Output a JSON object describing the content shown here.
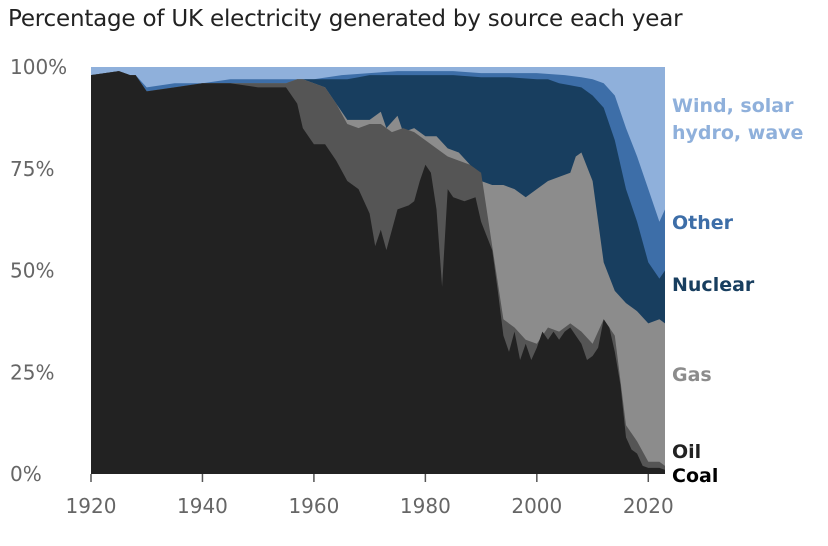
{
  "chart_data": {
    "type": "area",
    "stacked": true,
    "title": "Percentage of UK electricity generated by source each year",
    "xlabel": "",
    "ylabel": "",
    "xlim": [
      1920,
      2023
    ],
    "ylim": [
      0,
      100
    ],
    "x_ticks": [
      1920,
      1940,
      1960,
      1980,
      2000,
      2020
    ],
    "y_ticks": [
      0,
      25,
      50,
      75,
      100
    ],
    "y_tick_labels": [
      "0%",
      "25%",
      "50%",
      "75%",
      "100%"
    ],
    "legend_placement": "right",
    "grid": false,
    "series_order_bottom_to_top": [
      "Coal",
      "Oil",
      "Gas",
      "Nuclear",
      "Other",
      "Wind, solar hydro, wave"
    ],
    "series": [
      {
        "name": "Coal",
        "color": "#222222",
        "points": [
          [
            1920,
            98
          ],
          [
            1925,
            99
          ],
          [
            1927,
            98
          ],
          [
            1928,
            98
          ],
          [
            1930,
            94
          ],
          [
            1935,
            95
          ],
          [
            1940,
            96
          ],
          [
            1945,
            96
          ],
          [
            1950,
            95
          ],
          [
            1955,
            95
          ],
          [
            1957,
            91
          ],
          [
            1958,
            85
          ],
          [
            1960,
            81
          ],
          [
            1962,
            81
          ],
          [
            1964,
            77
          ],
          [
            1966,
            72
          ],
          [
            1968,
            70
          ],
          [
            1970,
            64
          ],
          [
            1971,
            56
          ],
          [
            1972,
            60
          ],
          [
            1973,
            55
          ],
          [
            1975,
            65
          ],
          [
            1977,
            66
          ],
          [
            1978,
            67
          ],
          [
            1979,
            72
          ],
          [
            1980,
            76
          ],
          [
            1981,
            74
          ],
          [
            1982,
            65
          ],
          [
            1983,
            46
          ],
          [
            1984,
            70
          ],
          [
            1985,
            68
          ],
          [
            1987,
            67
          ],
          [
            1989,
            68
          ],
          [
            1990,
            62
          ],
          [
            1992,
            55
          ],
          [
            1993,
            45
          ],
          [
            1994,
            34
          ],
          [
            1995,
            30
          ],
          [
            1996,
            35
          ],
          [
            1997,
            28
          ],
          [
            1998,
            32
          ],
          [
            1999,
            28
          ],
          [
            2000,
            31
          ],
          [
            2001,
            35
          ],
          [
            2002,
            33
          ],
          [
            2003,
            35
          ],
          [
            2004,
            33
          ],
          [
            2005,
            35
          ],
          [
            2006,
            36
          ],
          [
            2007,
            34
          ],
          [
            2008,
            32
          ],
          [
            2009,
            28
          ],
          [
            2010,
            29
          ],
          [
            2011,
            31
          ],
          [
            2012,
            38
          ],
          [
            2013,
            36
          ],
          [
            2014,
            30
          ],
          [
            2015,
            22
          ],
          [
            2016,
            9
          ],
          [
            2017,
            6
          ],
          [
            2018,
            5
          ],
          [
            2019,
            2
          ],
          [
            2020,
            1.5
          ],
          [
            2021,
            1.5
          ],
          [
            2022,
            1.5
          ],
          [
            2023,
            1
          ]
        ]
      },
      {
        "name": "Oil",
        "color": "#555555",
        "points": [
          [
            1920,
            98
          ],
          [
            1925,
            99
          ],
          [
            1927,
            98
          ],
          [
            1928,
            98
          ],
          [
            1930,
            94
          ],
          [
            1935,
            95
          ],
          [
            1940,
            96
          ],
          [
            1945,
            96
          ],
          [
            1950,
            96
          ],
          [
            1955,
            96
          ],
          [
            1957,
            97
          ],
          [
            1958,
            97
          ],
          [
            1960,
            96
          ],
          [
            1962,
            95
          ],
          [
            1964,
            91
          ],
          [
            1966,
            86
          ],
          [
            1968,
            85
          ],
          [
            1970,
            86
          ],
          [
            1972,
            86
          ],
          [
            1974,
            84
          ],
          [
            1976,
            85
          ],
          [
            1978,
            84
          ],
          [
            1980,
            82
          ],
          [
            1982,
            80
          ],
          [
            1984,
            78
          ],
          [
            1986,
            77
          ],
          [
            1988,
            76
          ],
          [
            1990,
            74
          ],
          [
            1992,
            56
          ],
          [
            1994,
            38
          ],
          [
            1996,
            36
          ],
          [
            1998,
            33
          ],
          [
            2000,
            32
          ],
          [
            2002,
            36
          ],
          [
            2004,
            35
          ],
          [
            2006,
            37
          ],
          [
            2008,
            35
          ],
          [
            2010,
            32
          ],
          [
            2012,
            38
          ],
          [
            2014,
            34
          ],
          [
            2016,
            12
          ],
          [
            2018,
            8
          ],
          [
            2020,
            3
          ],
          [
            2022,
            3
          ],
          [
            2023,
            2
          ]
        ]
      },
      {
        "name": "Gas",
        "color": "#8c8c8c",
        "points": [
          [
            1920,
            98
          ],
          [
            1925,
            99
          ],
          [
            1927,
            98
          ],
          [
            1928,
            98
          ],
          [
            1930,
            94
          ],
          [
            1935,
            95
          ],
          [
            1940,
            96
          ],
          [
            1945,
            96
          ],
          [
            1950,
            96
          ],
          [
            1955,
            96
          ],
          [
            1957,
            97
          ],
          [
            1958,
            97
          ],
          [
            1960,
            96
          ],
          [
            1962,
            95
          ],
          [
            1964,
            91
          ],
          [
            1966,
            87
          ],
          [
            1968,
            87
          ],
          [
            1970,
            87
          ],
          [
            1972,
            89
          ],
          [
            1973,
            85
          ],
          [
            1975,
            88
          ],
          [
            1976,
            84
          ],
          [
            1978,
            85
          ],
          [
            1980,
            83
          ],
          [
            1982,
            83
          ],
          [
            1984,
            80
          ],
          [
            1986,
            79
          ],
          [
            1988,
            76
          ],
          [
            1990,
            72
          ],
          [
            1992,
            71
          ],
          [
            1994,
            71
          ],
          [
            1996,
            70
          ],
          [
            1998,
            68
          ],
          [
            2000,
            70
          ],
          [
            2002,
            72
          ],
          [
            2004,
            73
          ],
          [
            2006,
            74
          ],
          [
            2007,
            78
          ],
          [
            2008,
            79
          ],
          [
            2010,
            72
          ],
          [
            2012,
            52
          ],
          [
            2014,
            45
          ],
          [
            2016,
            42
          ],
          [
            2018,
            40
          ],
          [
            2020,
            37
          ],
          [
            2022,
            38
          ],
          [
            2023,
            37
          ]
        ]
      },
      {
        "name": "Nuclear",
        "color": "#183e5f",
        "points": [
          [
            1920,
            98
          ],
          [
            1925,
            99
          ],
          [
            1927,
            98
          ],
          [
            1928,
            98
          ],
          [
            1930,
            94
          ],
          [
            1935,
            95
          ],
          [
            1940,
            96
          ],
          [
            1945,
            96
          ],
          [
            1950,
            96
          ],
          [
            1955,
            96
          ],
          [
            1957,
            97
          ],
          [
            1958,
            97
          ],
          [
            1960,
            97
          ],
          [
            1962,
            97
          ],
          [
            1964,
            97
          ],
          [
            1966,
            97
          ],
          [
            1968,
            97.5
          ],
          [
            1970,
            98
          ],
          [
            1975,
            98
          ],
          [
            1980,
            98
          ],
          [
            1985,
            98
          ],
          [
            1990,
            97.5
          ],
          [
            1995,
            97.5
          ],
          [
            2000,
            97
          ],
          [
            2002,
            97
          ],
          [
            2004,
            96
          ],
          [
            2006,
            95.5
          ],
          [
            2008,
            95
          ],
          [
            2010,
            93
          ],
          [
            2012,
            90
          ],
          [
            2014,
            82
          ],
          [
            2016,
            70
          ],
          [
            2018,
            62
          ],
          [
            2020,
            52
          ],
          [
            2022,
            48
          ],
          [
            2023,
            50
          ]
        ]
      },
      {
        "name": "Other",
        "color": "#3d6ea8",
        "points": [
          [
            1920,
            98
          ],
          [
            1925,
            99
          ],
          [
            1927,
            98
          ],
          [
            1928,
            98
          ],
          [
            1930,
            95
          ],
          [
            1935,
            96
          ],
          [
            1940,
            96
          ],
          [
            1945,
            97
          ],
          [
            1950,
            97
          ],
          [
            1955,
            97
          ],
          [
            1960,
            97
          ],
          [
            1965,
            98
          ],
          [
            1970,
            98.5
          ],
          [
            1975,
            99
          ],
          [
            1980,
            99
          ],
          [
            1985,
            99
          ],
          [
            1990,
            98.5
          ],
          [
            1995,
            98.5
          ],
          [
            2000,
            98.5
          ],
          [
            2005,
            98
          ],
          [
            2008,
            97.5
          ],
          [
            2010,
            97
          ],
          [
            2012,
            96
          ],
          [
            2014,
            93
          ],
          [
            2016,
            85
          ],
          [
            2018,
            78
          ],
          [
            2020,
            70
          ],
          [
            2022,
            62
          ],
          [
            2023,
            65
          ]
        ]
      },
      {
        "name": "Wind, solar hydro, wave",
        "color": "#8fb0db",
        "points": [
          [
            1920,
            100
          ],
          [
            2023,
            100
          ]
        ]
      }
    ],
    "legend": [
      {
        "label_lines": [
          "Wind, solar",
          "hydro, wave"
        ],
        "color": "#8fb0db"
      },
      {
        "label_lines": [
          "Other"
        ],
        "color": "#3d6ea8"
      },
      {
        "label_lines": [
          "Nuclear"
        ],
        "color": "#183e5f"
      },
      {
        "label_lines": [
          "Gas"
        ],
        "color": "#8c8c8c"
      },
      {
        "label_lines": [
          "Oil"
        ],
        "color": "#222222"
      },
      {
        "label_lines": [
          "Coal"
        ],
        "color": "#000000"
      }
    ]
  }
}
